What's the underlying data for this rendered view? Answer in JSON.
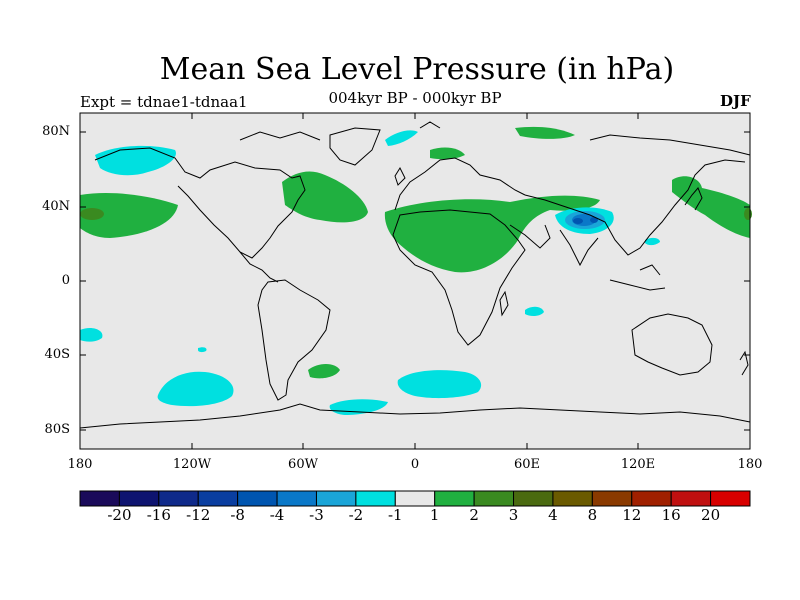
{
  "title": "Mean Sea Level Pressure (in hPa)",
  "left_label": "Expt = tdnae1-tdnaa1",
  "center_label": "004kyr BP - 000kyr BP",
  "right_label": "DJF",
  "lat_ticks": [
    "80N",
    "40N",
    "0",
    "40S",
    "80S"
  ],
  "lon_ticks": [
    "180",
    "120W",
    "60W",
    "0",
    "60E",
    "120E",
    "180"
  ],
  "colorbar": {
    "colors": [
      "#1a0a5a",
      "#0e1470",
      "#0f2a8a",
      "#0a3ea0",
      "#0055b0",
      "#0a78c8",
      "#1aa5d8",
      "#00e0e0",
      "#e8e8e8",
      "#20b040",
      "#3a8a20",
      "#4a6a10",
      "#6a5a00",
      "#8a3a00",
      "#a02000",
      "#c01010",
      "#d80000"
    ],
    "labels": [
      "-20",
      "-16",
      "-12",
      "-8",
      "-4",
      "-3",
      "-2",
      "-1",
      "1",
      "2",
      "3",
      "4",
      "8",
      "12",
      "16",
      "20"
    ]
  },
  "colors": {
    "background": "#e8e8e8",
    "pos1": "#20b040",
    "pos2": "#3a8a20",
    "neg1": "#00e0e0",
    "neg2": "#1aa5d8",
    "neg3": "#0a78c8",
    "neg4": "#0055b0"
  }
}
